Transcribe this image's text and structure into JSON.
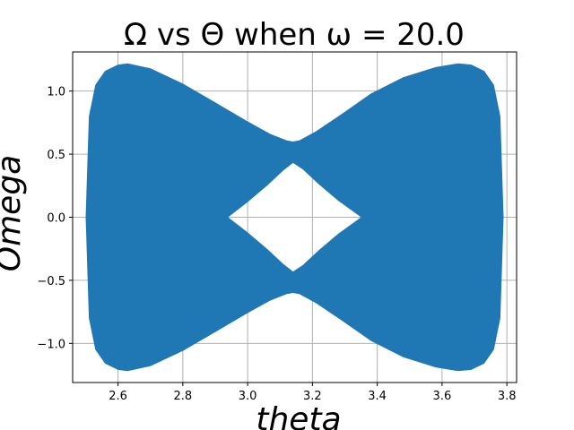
{
  "chart_data": {
    "type": "area",
    "title": "Ω vs Θ when ω = 20.0",
    "xlabel": "theta",
    "ylabel": "Omega",
    "xlim": [
      2.46,
      3.83
    ],
    "ylim": [
      -1.31,
      1.31
    ],
    "xticks": [
      2.6,
      2.8,
      3.0,
      3.2,
      3.4,
      3.6,
      3.8
    ],
    "xtick_labels": [
      "2.6",
      "2.8",
      "3.0",
      "3.2",
      "3.4",
      "3.6",
      "3.8"
    ],
    "yticks": [
      -1.0,
      -0.5,
      0.0,
      0.5,
      1.0
    ],
    "ytick_labels": [
      "−1.0",
      "−0.5",
      "0.0",
      "0.5",
      "1.0"
    ],
    "grid": true,
    "fill_color": "#1f77b4",
    "outer_boundary": {
      "theta": [
        2.5,
        2.51,
        2.53,
        2.56,
        2.6,
        2.63,
        2.7,
        2.8,
        2.9,
        3.0,
        3.07,
        3.12,
        3.14,
        3.16,
        3.21,
        3.28,
        3.38,
        3.48,
        3.58,
        3.65,
        3.69,
        3.73,
        3.76,
        3.78,
        3.79
      ],
      "omega": [
        0.0,
        0.8,
        1.05,
        1.16,
        1.21,
        1.22,
        1.18,
        1.06,
        0.91,
        0.76,
        0.66,
        0.61,
        0.6,
        0.61,
        0.68,
        0.8,
        0.98,
        1.11,
        1.19,
        1.22,
        1.21,
        1.16,
        1.05,
        0.8,
        0.0
      ],
      "symmetric_about_zero": true
    },
    "inner_hole": {
      "theta": [
        2.94,
        3.0,
        3.06,
        3.11,
        3.14,
        3.17,
        3.22,
        3.28,
        3.35
      ],
      "omega": [
        0.0,
        0.12,
        0.25,
        0.37,
        0.43,
        0.38,
        0.26,
        0.13,
        0.0
      ],
      "symmetric_about_zero": true
    }
  }
}
